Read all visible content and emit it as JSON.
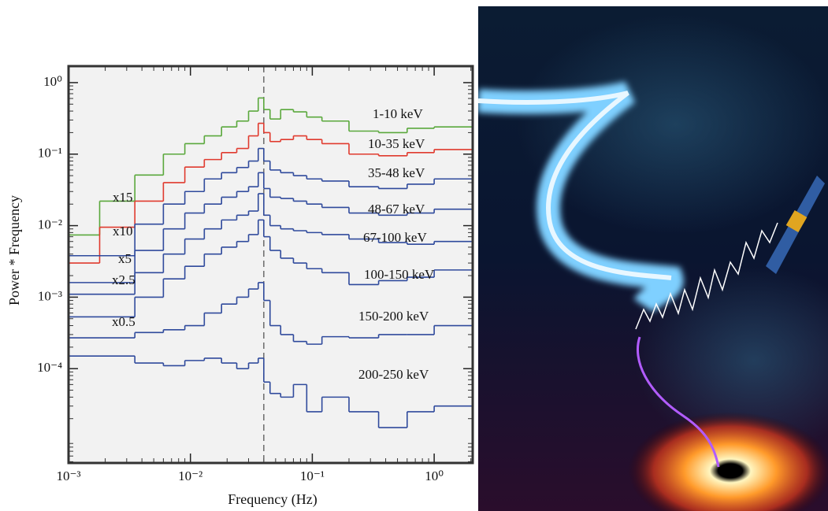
{
  "chart_data": {
    "type": "step",
    "x_label": "Frequency (Hz)",
    "y_label": "Power * Frequency",
    "log_x": true,
    "log_y": true,
    "xlim": [
      0.001,
      2.07
    ],
    "ylim": [
      4.8e-06,
      1.7
    ],
    "xticks": [
      {
        "value": 0.001,
        "label": "10⁻³"
      },
      {
        "value": 0.01,
        "label": "10⁻²"
      },
      {
        "value": 0.1,
        "label": "10⁻¹"
      },
      {
        "value": 1,
        "label": "10⁰"
      }
    ],
    "yticks": [
      {
        "value": 0.0001,
        "label": "10⁻⁴"
      },
      {
        "value": 0.001,
        "label": "10⁻³"
      },
      {
        "value": 0.01,
        "label": "10⁻²"
      },
      {
        "value": 0.1,
        "label": "10⁻¹"
      },
      {
        "value": 1,
        "label": "10⁰"
      }
    ],
    "vline": 0.04,
    "annotations": [
      "x15",
      "x10",
      "x5",
      "x2.5",
      "x0.5"
    ],
    "x": [
      0.001,
      0.0018,
      0.0035,
      0.006,
      0.009,
      0.013,
      0.018,
      0.024,
      0.03,
      0.036,
      0.04,
      0.045,
      0.055,
      0.07,
      0.09,
      0.12,
      0.2,
      0.35,
      0.6,
      1.0
    ],
    "series": [
      {
        "name": "1-10 keV",
        "color": "#5aa83c",
        "values": [
          0.0074,
          0.022,
          0.051,
          0.1,
          0.14,
          0.18,
          0.24,
          0.29,
          0.4,
          0.61,
          0.42,
          0.31,
          0.42,
          0.39,
          0.33,
          0.29,
          0.21,
          0.2,
          0.23,
          0.24
        ]
      },
      {
        "name": "10-35 keV",
        "color": "#e03a2e",
        "values": [
          0.003,
          0.0095,
          0.022,
          0.04,
          0.066,
          0.084,
          0.105,
          0.12,
          0.18,
          0.27,
          0.2,
          0.15,
          0.16,
          0.18,
          0.16,
          0.14,
          0.1,
          0.095,
          0.105,
          0.116
        ]
      },
      {
        "name": "35-48 keV",
        "color": "#2f4a9c",
        "values": [
          0.0038,
          0.0038,
          0.0105,
          0.02,
          0.03,
          0.045,
          0.055,
          0.065,
          0.08,
          0.12,
          0.08,
          0.06,
          0.055,
          0.05,
          0.045,
          0.042,
          0.035,
          0.033,
          0.038,
          0.045
        ]
      },
      {
        "name": "48-67 keV",
        "color": "#2f4a9c",
        "values": [
          0.0016,
          0.0016,
          0.0045,
          0.009,
          0.015,
          0.02,
          0.025,
          0.03,
          0.035,
          0.055,
          0.033,
          0.025,
          0.024,
          0.022,
          0.02,
          0.018,
          0.015,
          0.014,
          0.015,
          0.017
        ]
      },
      {
        "name": "67-100 keV",
        "color": "#2f4a9c",
        "values": [
          0.0011,
          0.0011,
          0.0022,
          0.004,
          0.0065,
          0.009,
          0.012,
          0.014,
          0.016,
          0.028,
          0.014,
          0.01,
          0.009,
          0.0085,
          0.008,
          0.0075,
          0.0065,
          0.0058,
          0.0055,
          0.006
        ]
      },
      {
        "name": "100-150 keV",
        "color": "#2f4a9c",
        "values": [
          0.00053,
          0.00053,
          0.001,
          0.0018,
          0.0027,
          0.004,
          0.005,
          0.006,
          0.0075,
          0.012,
          0.007,
          0.0045,
          0.0035,
          0.003,
          0.0025,
          0.0022,
          0.0015,
          0.0017,
          0.0019,
          0.0024
        ]
      },
      {
        "name": "150-200 keV",
        "color": "#2f4a9c",
        "values": [
          0.00027,
          0.00027,
          0.00032,
          0.00035,
          0.0004,
          0.0006,
          0.0008,
          0.001,
          0.0013,
          0.0016,
          0.0009,
          0.0004,
          0.0003,
          0.00024,
          0.00022,
          0.00028,
          0.00027,
          0.0003,
          0.0003,
          0.0004
        ]
      },
      {
        "name": "200-250 keV",
        "color": "#2f4a9c",
        "values": [
          0.00015,
          0.00015,
          0.00012,
          0.00011,
          0.00013,
          0.00014,
          0.00012,
          0.0001,
          0.00012,
          0.00014,
          6.5e-05,
          4.5e-05,
          4e-05,
          6e-05,
          2.5e-05,
          4e-05,
          2.5e-05,
          1.5e-05,
          2.5e-05,
          3e-05
        ]
      }
    ]
  }
}
